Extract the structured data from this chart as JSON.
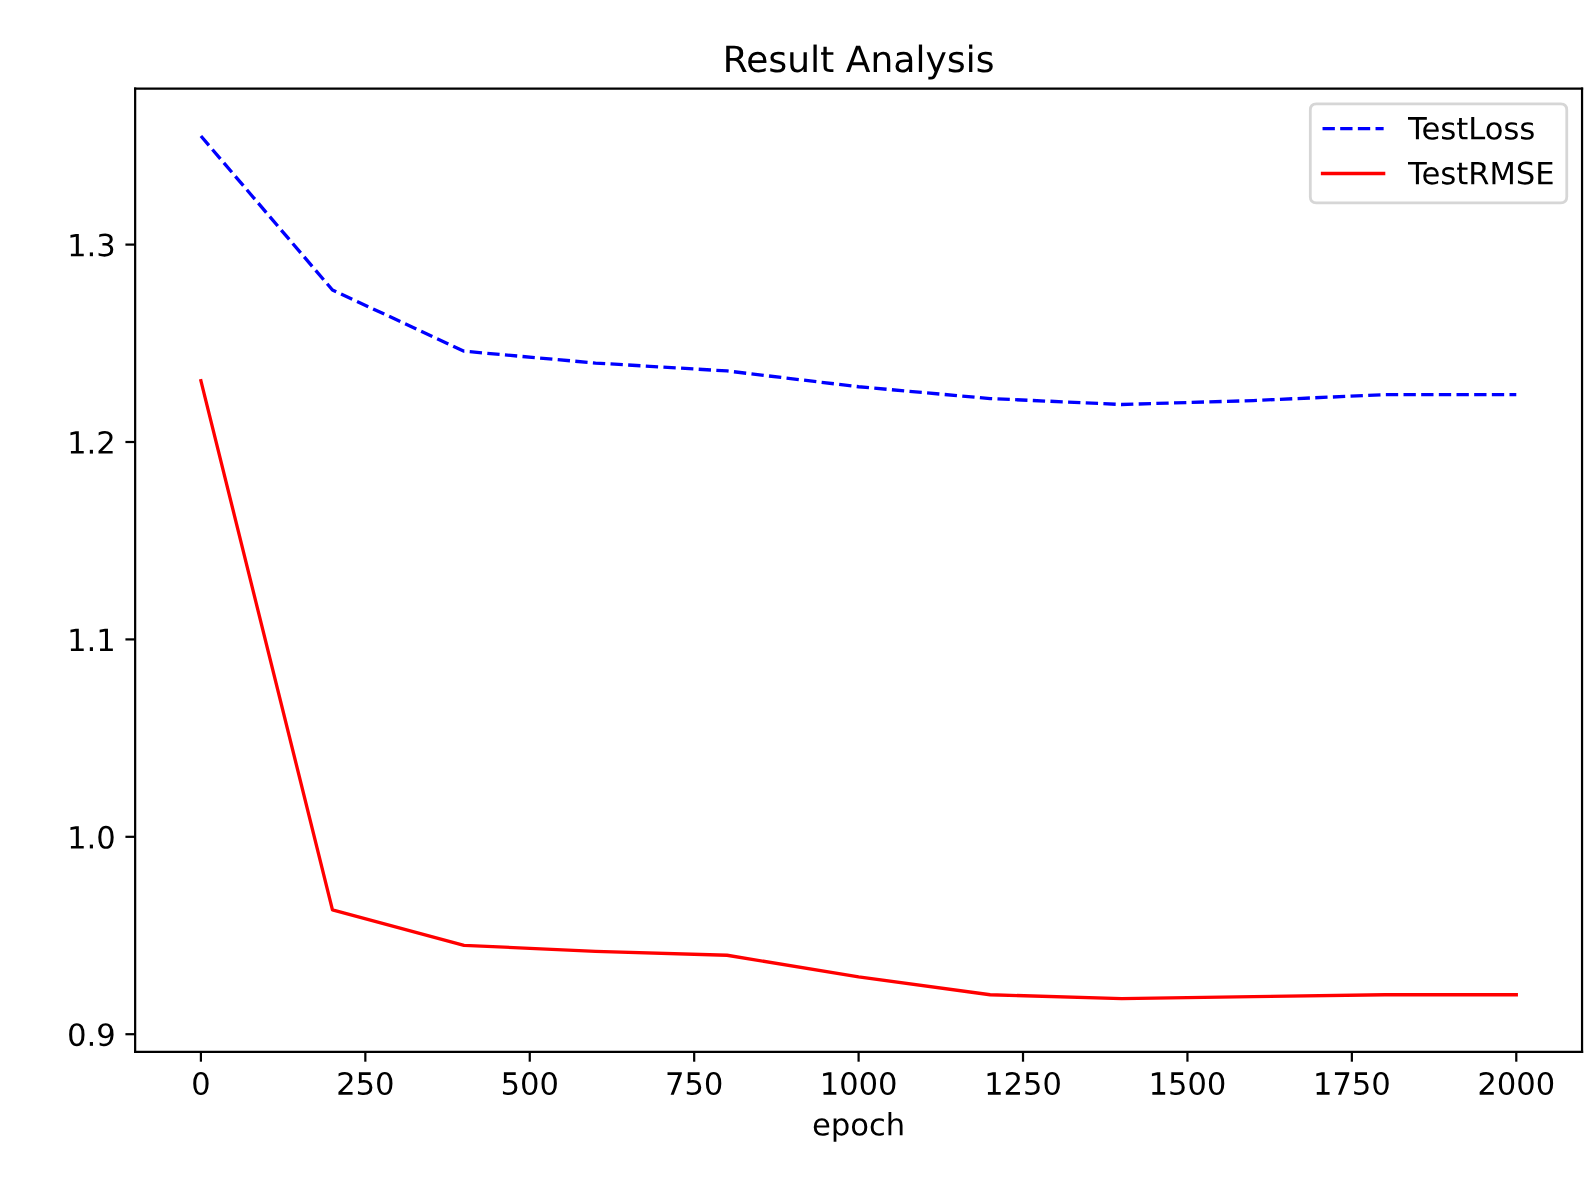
{
  "chart_data": {
    "type": "line",
    "title": "Result Analysis",
    "xlabel": "epoch",
    "x": [
      0,
      200,
      400,
      600,
      800,
      1000,
      1200,
      1400,
      1600,
      1800,
      2000
    ],
    "series": [
      {
        "name": "TestLoss",
        "color": "#0000ff",
        "line_style": "dashed",
        "values": [
          1.355,
          1.277,
          1.246,
          1.24,
          1.236,
          1.228,
          1.222,
          1.219,
          1.221,
          1.224,
          1.224
        ]
      },
      {
        "name": "TestRMSE",
        "color": "#ff0000",
        "line_style": "solid",
        "values": [
          1.231,
          0.963,
          0.945,
          0.942,
          0.94,
          0.929,
          0.92,
          0.918,
          0.919,
          0.92,
          0.92
        ]
      }
    ],
    "xlim": [
      -100,
      2100
    ],
    "ylim": [
      0.891,
      1.379
    ],
    "xticks": [
      0,
      250,
      500,
      750,
      1000,
      1250,
      1500,
      1750,
      2000
    ],
    "yticks": [
      {
        "value": 0.9,
        "label": "0.9"
      },
      {
        "value": 1.0,
        "label": "1.0"
      },
      {
        "value": 1.1,
        "label": "1.1"
      },
      {
        "value": 1.2,
        "label": "1.2"
      },
      {
        "value": 1.3,
        "label": "1.3"
      }
    ],
    "legend": "top right",
    "grid": false,
    "marker": "none"
  }
}
